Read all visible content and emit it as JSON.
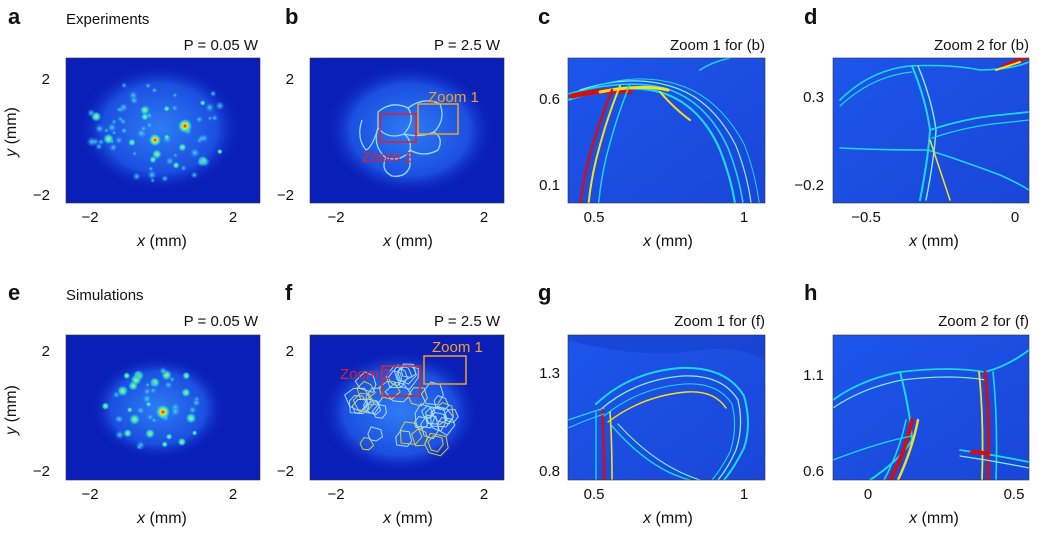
{
  "panels": [
    {
      "id": "a",
      "label": "a",
      "title": "P = 0.05 W",
      "section": "Experiments",
      "xticks": [
        "−2",
        "2"
      ],
      "yticks": [
        "2",
        "−2"
      ],
      "xlabel": "x (mm)",
      "ylabel": "y (mm)"
    },
    {
      "id": "b",
      "label": "b",
      "title": "P = 2.5 W",
      "xticks": [
        "−2",
        "2"
      ],
      "yticks": [
        "2",
        "−2"
      ],
      "xlabel": "x (mm)",
      "zoom1": "Zoom 1",
      "zoom2": "Zoom 2"
    },
    {
      "id": "c",
      "label": "c",
      "title": "Zoom 1 for (b)",
      "xticks": [
        "0.5",
        "1"
      ],
      "yticks": [
        "0.6",
        "0.1"
      ],
      "xlabel": "x (mm)"
    },
    {
      "id": "d",
      "label": "d",
      "title": "Zoom 2 for (b)",
      "xticks": [
        "−0.5",
        "0"
      ],
      "yticks": [
        "0.3",
        "−0.2"
      ],
      "xlabel": "x (mm)"
    },
    {
      "id": "e",
      "label": "e",
      "title": "P = 0.05 W",
      "section": "Simulations",
      "xticks": [
        "−2",
        "2"
      ],
      "yticks": [
        "2",
        "−2"
      ],
      "xlabel": "x (mm)",
      "ylabel": "y (mm)"
    },
    {
      "id": "f",
      "label": "f",
      "title": "P = 2.5 W",
      "xticks": [
        "−2",
        "2"
      ],
      "yticks": [
        "2",
        "−2"
      ],
      "xlabel": "x (mm)",
      "zoom1": "Zoom 1",
      "zoom2": "Zoom 2"
    },
    {
      "id": "g",
      "label": "g",
      "title": "Zoom 1 for (f)",
      "xticks": [
        "0.5",
        "1"
      ],
      "yticks": [
        "1.3",
        "0.8"
      ],
      "xlabel": "x (mm)"
    },
    {
      "id": "h",
      "label": "h",
      "title": "Zoom 2 for (f)",
      "xticks": [
        "0",
        "0.5"
      ],
      "yticks": [
        "1.1",
        "0.6"
      ],
      "xlabel": "x (mm)"
    }
  ],
  "colors": {
    "background": "#0a1fb8",
    "field": "#1e5cf0",
    "mid": "#19d9e8",
    "high": "#f5e11e",
    "peak": "#d40f0f",
    "zoom1": "#f0a030",
    "zoom2": "#e0202a"
  }
}
